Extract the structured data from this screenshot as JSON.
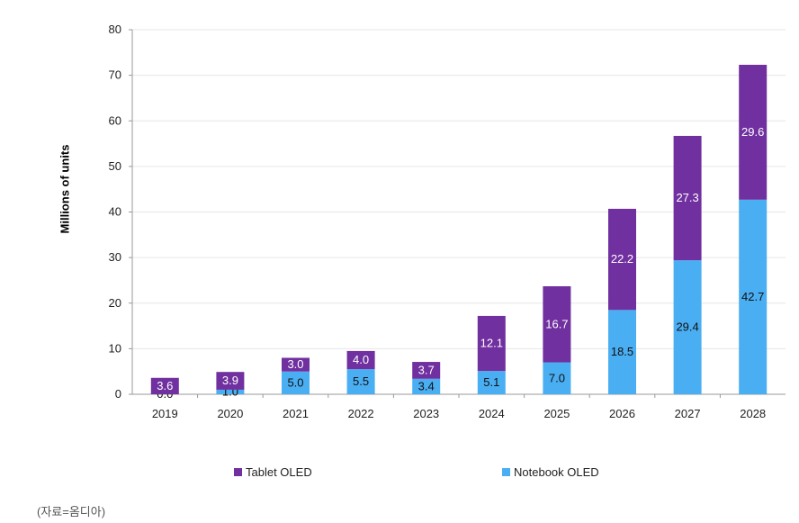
{
  "chart_data": {
    "type": "bar",
    "stacked": true,
    "categories": [
      "2019",
      "2020",
      "2021",
      "2022",
      "2023",
      "2024",
      "2025",
      "2026",
      "2027",
      "2028"
    ],
    "series": [
      {
        "name": "Notebook OLED",
        "color": "#4aaef2",
        "values": [
          0.0,
          1.0,
          5.0,
          5.5,
          3.4,
          5.1,
          7.0,
          18.5,
          29.4,
          42.7
        ],
        "labels": [
          "0.0",
          "1.0",
          "5.0",
          "5.5",
          "3.4",
          "5.1",
          "7.0",
          "18.5",
          "29.4",
          "42.7"
        ]
      },
      {
        "name": "Tablet OLED",
        "color": "#7030a0",
        "values": [
          3.6,
          3.9,
          3.0,
          4.0,
          3.7,
          12.1,
          16.7,
          22.2,
          27.3,
          29.6
        ],
        "labels": [
          "3.6",
          "3.9",
          "3.0",
          "4.0",
          "3.7",
          "12.1",
          "16.7",
          "22.2",
          "27.3",
          "29.6"
        ]
      }
    ],
    "ylabel": "Millions of units",
    "ylim": [
      0,
      80
    ],
    "yticks": [
      "0",
      "10",
      "20",
      "30",
      "40",
      "50",
      "60",
      "70",
      "80"
    ],
    "grid": true,
    "legend_position": "bottom"
  },
  "legend": {
    "tablet": "Tablet OLED",
    "notebook": "Notebook OLED",
    "tablet_color": "#7030a0",
    "notebook_color": "#4aaef2"
  },
  "source": "(자료=옴디아)"
}
